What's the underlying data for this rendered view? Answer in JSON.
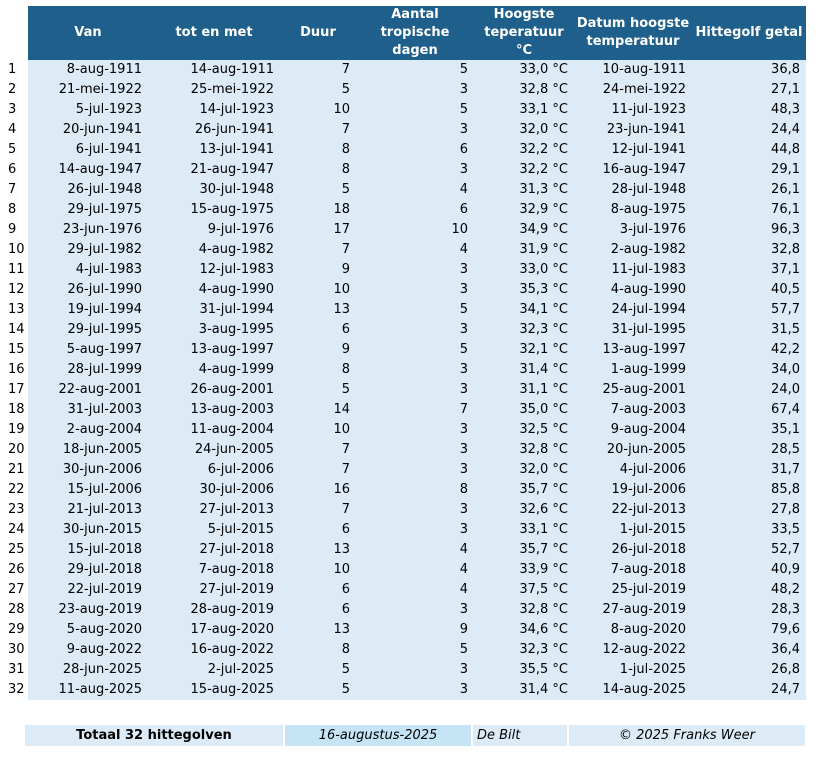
{
  "headers": {
    "van": "Van",
    "tot": "tot en met",
    "duur": "Duur",
    "tropisch": "Aantal tropische dagen",
    "hoogste": "Hoogste teperatuur °C",
    "datum": "Datum hoogste temperatuur",
    "getal": "Hittegolf getal"
  },
  "rows": [
    {
      "n": "1",
      "van": "8-aug-1911",
      "tot": "14-aug-1911",
      "duur": "7",
      "trop": "5",
      "temp": "33,0 °C",
      "datum": "10-aug-1911",
      "getal": "36,8"
    },
    {
      "n": "2",
      "van": "21-mei-1922",
      "tot": "25-mei-1922",
      "duur": "5",
      "trop": "3",
      "temp": "32,8 °C",
      "datum": "24-mei-1922",
      "getal": "27,1"
    },
    {
      "n": "3",
      "van": "5-jul-1923",
      "tot": "14-jul-1923",
      "duur": "10",
      "trop": "5",
      "temp": "33,1 °C",
      "datum": "11-jul-1923",
      "getal": "48,3"
    },
    {
      "n": "4",
      "van": "20-jun-1941",
      "tot": "26-jun-1941",
      "duur": "7",
      "trop": "3",
      "temp": "32,0 °C",
      "datum": "23-jun-1941",
      "getal": "24,4"
    },
    {
      "n": "5",
      "van": "6-jul-1941",
      "tot": "13-jul-1941",
      "duur": "8",
      "trop": "6",
      "temp": "32,2 °C",
      "datum": "12-jul-1941",
      "getal": "44,8"
    },
    {
      "n": "6",
      "van": "14-aug-1947",
      "tot": "21-aug-1947",
      "duur": "8",
      "trop": "3",
      "temp": "32,2 °C",
      "datum": "16-aug-1947",
      "getal": "29,1"
    },
    {
      "n": "7",
      "van": "26-jul-1948",
      "tot": "30-jul-1948",
      "duur": "5",
      "trop": "4",
      "temp": "31,3 °C",
      "datum": "28-jul-1948",
      "getal": "26,1"
    },
    {
      "n": "8",
      "van": "29-jul-1975",
      "tot": "15-aug-1975",
      "duur": "18",
      "trop": "6",
      "temp": "32,9 °C",
      "datum": "8-aug-1975",
      "getal": "76,1"
    },
    {
      "n": "9",
      "van": "23-jun-1976",
      "tot": "9-jul-1976",
      "duur": "17",
      "trop": "10",
      "temp": "34,9 °C",
      "datum": "3-jul-1976",
      "getal": "96,3"
    },
    {
      "n": "10",
      "van": "29-jul-1982",
      "tot": "4-aug-1982",
      "duur": "7",
      "trop": "4",
      "temp": "31,9 °C",
      "datum": "2-aug-1982",
      "getal": "32,8"
    },
    {
      "n": "11",
      "van": "4-jul-1983",
      "tot": "12-jul-1983",
      "duur": "9",
      "trop": "3",
      "temp": "33,0 °C",
      "datum": "11-jul-1983",
      "getal": "37,1"
    },
    {
      "n": "12",
      "van": "26-jul-1990",
      "tot": "4-aug-1990",
      "duur": "10",
      "trop": "3",
      "temp": "35,3 °C",
      "datum": "4-aug-1990",
      "getal": "40,5"
    },
    {
      "n": "13",
      "van": "19-jul-1994",
      "tot": "31-jul-1994",
      "duur": "13",
      "trop": "5",
      "temp": "34,1 °C",
      "datum": "24-jul-1994",
      "getal": "57,7"
    },
    {
      "n": "14",
      "van": "29-jul-1995",
      "tot": "3-aug-1995",
      "duur": "6",
      "trop": "3",
      "temp": "32,3 °C",
      "datum": "31-jul-1995",
      "getal": "31,5"
    },
    {
      "n": "15",
      "van": "5-aug-1997",
      "tot": "13-aug-1997",
      "duur": "9",
      "trop": "5",
      "temp": "32,1 °C",
      "datum": "13-aug-1997",
      "getal": "42,2"
    },
    {
      "n": "16",
      "van": "28-jul-1999",
      "tot": "4-aug-1999",
      "duur": "8",
      "trop": "3",
      "temp": "31,4 °C",
      "datum": "1-aug-1999",
      "getal": "34,0"
    },
    {
      "n": "17",
      "van": "22-aug-2001",
      "tot": "26-aug-2001",
      "duur": "5",
      "trop": "3",
      "temp": "31,1 °C",
      "datum": "25-aug-2001",
      "getal": "24,0"
    },
    {
      "n": "18",
      "van": "31-jul-2003",
      "tot": "13-aug-2003",
      "duur": "14",
      "trop": "7",
      "temp": "35,0 °C",
      "datum": "7-aug-2003",
      "getal": "67,4"
    },
    {
      "n": "19",
      "van": "2-aug-2004",
      "tot": "11-aug-2004",
      "duur": "10",
      "trop": "3",
      "temp": "32,5 °C",
      "datum": "9-aug-2004",
      "getal": "35,1"
    },
    {
      "n": "20",
      "van": "18-jun-2005",
      "tot": "24-jun-2005",
      "duur": "7",
      "trop": "3",
      "temp": "32,8 °C",
      "datum": "20-jun-2005",
      "getal": "28,5"
    },
    {
      "n": "21",
      "van": "30-jun-2006",
      "tot": "6-jul-2006",
      "duur": "7",
      "trop": "3",
      "temp": "32,0 °C",
      "datum": "4-jul-2006",
      "getal": "31,7"
    },
    {
      "n": "22",
      "van": "15-jul-2006",
      "tot": "30-jul-2006",
      "duur": "16",
      "trop": "8",
      "temp": "35,7 °C",
      "datum": "19-jul-2006",
      "getal": "85,8"
    },
    {
      "n": "23",
      "van": "21-jul-2013",
      "tot": "27-jul-2013",
      "duur": "7",
      "trop": "3",
      "temp": "32,6 °C",
      "datum": "22-jul-2013",
      "getal": "27,8"
    },
    {
      "n": "24",
      "van": "30-jun-2015",
      "tot": "5-jul-2015",
      "duur": "6",
      "trop": "3",
      "temp": "33,1 °C",
      "datum": "1-jul-2015",
      "getal": "33,5"
    },
    {
      "n": "25",
      "van": "15-jul-2018",
      "tot": "27-jul-2018",
      "duur": "13",
      "trop": "4",
      "temp": "35,7 °C",
      "datum": "26-jul-2018",
      "getal": "52,7"
    },
    {
      "n": "26",
      "van": "29-jul-2018",
      "tot": "7-aug-2018",
      "duur": "10",
      "trop": "4",
      "temp": "33,9 °C",
      "datum": "7-aug-2018",
      "getal": "40,9"
    },
    {
      "n": "27",
      "van": "22-jul-2019",
      "tot": "27-jul-2019",
      "duur": "6",
      "trop": "4",
      "temp": "37,5 °C",
      "datum": "25-jul-2019",
      "getal": "48,2"
    },
    {
      "n": "28",
      "van": "23-aug-2019",
      "tot": "28-aug-2019",
      "duur": "6",
      "trop": "3",
      "temp": "32,8 °C",
      "datum": "27-aug-2019",
      "getal": "28,3"
    },
    {
      "n": "29",
      "van": "5-aug-2020",
      "tot": "17-aug-2020",
      "duur": "13",
      "trop": "9",
      "temp": "34,6 °C",
      "datum": "8-aug-2020",
      "getal": "79,6"
    },
    {
      "n": "30",
      "van": "9-aug-2022",
      "tot": "16-aug-2022",
      "duur": "8",
      "trop": "5",
      "temp": "32,3 °C",
      "datum": "12-aug-2022",
      "getal": "36,4"
    },
    {
      "n": "31",
      "van": "28-jun-2025",
      "tot": "2-jul-2025",
      "duur": "5",
      "trop": "3",
      "temp": "35,5 °C",
      "datum": "1-jul-2025",
      "getal": "26,8"
    },
    {
      "n": "32",
      "van": "11-aug-2025",
      "tot": "15-aug-2025",
      "duur": "5",
      "trop": "3",
      "temp": "31,4 °C",
      "datum": "14-aug-2025",
      "getal": "24,7"
    }
  ],
  "footer": {
    "total": "Totaal 32 hittegolven",
    "date": "16-augustus-2025",
    "location": "De Bilt",
    "copyright": "© 2025 Franks Weer"
  },
  "colors": {
    "header_bg": "#1f5f8b",
    "row_bg": "#ddebf7",
    "date_bg": "#c5e4f6"
  }
}
